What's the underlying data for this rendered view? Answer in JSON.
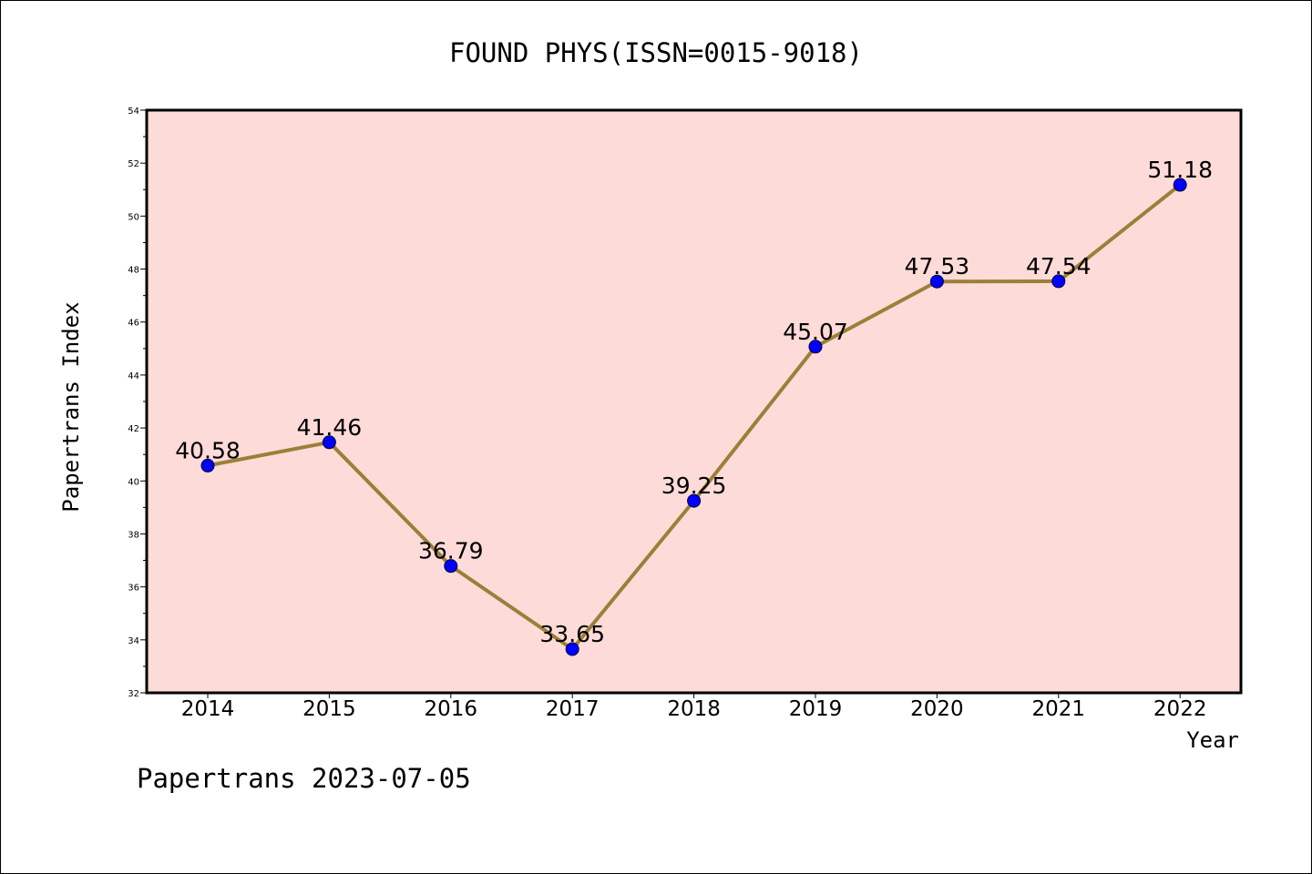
{
  "chart_data": {
    "type": "line",
    "title": "FOUND PHYS(ISSN=0015-9018)",
    "xlabel": "Year",
    "ylabel": "Papertrans Index",
    "footer": "Papertrans 2023-07-05",
    "categories": [
      "2014",
      "2015",
      "2016",
      "2017",
      "2018",
      "2019",
      "2020",
      "2021",
      "2022"
    ],
    "series": [
      {
        "values": [
          40.58,
          41.46,
          36.79,
          33.65,
          39.25,
          45.07,
          47.53,
          47.54,
          51.18
        ],
        "labels": [
          "40.58",
          "41.46",
          "36.79",
          "33.65",
          "39.25",
          "45.07",
          "47.53",
          "47.54",
          "51.18"
        ]
      }
    ],
    "ylim": [
      32,
      54
    ],
    "yticks": [
      "32",
      "34",
      "36",
      "38",
      "40",
      "42",
      "44",
      "46",
      "48",
      "50",
      "52",
      "54"
    ],
    "grid": false,
    "colors": {
      "plot_background": "#fddbd8",
      "line": "#9a8038",
      "marker": "#0000ff",
      "axes": "#000000"
    }
  }
}
